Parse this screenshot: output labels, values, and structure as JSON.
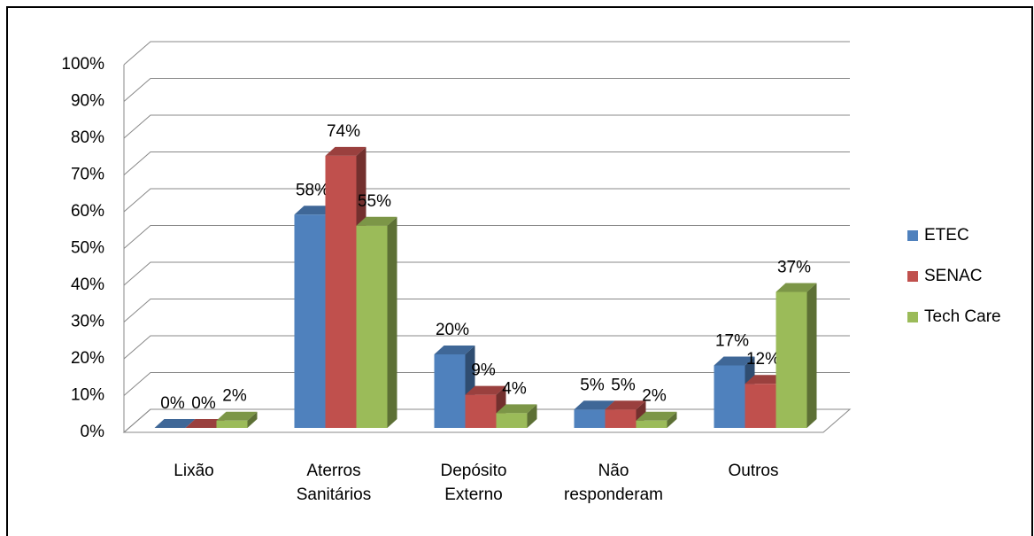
{
  "chart_data": {
    "type": "bar3d",
    "categories": [
      "Lixão",
      "Aterros Sanitários",
      "Depósito Externo",
      "Não responderam",
      "Outros"
    ],
    "series": [
      {
        "name": "ETEC",
        "color": "#4f81bd",
        "values": [
          0,
          58,
          20,
          5,
          17
        ],
        "value_labels": [
          "0%",
          "58%",
          "20%",
          "5%",
          "17%"
        ]
      },
      {
        "name": "SENAC",
        "color": "#c0504d",
        "values": [
          0,
          74,
          9,
          5,
          12
        ],
        "value_labels": [
          "0%",
          "74%",
          "9%",
          "5%",
          "12%"
        ]
      },
      {
        "name": "Tech Care",
        "color": "#9bbb59",
        "values": [
          2,
          55,
          4,
          2,
          37
        ],
        "value_labels": [
          "2%",
          "55%",
          "4%",
          "2%",
          "37%"
        ]
      }
    ],
    "ylim": [
      0,
      100
    ],
    "yticks": [
      {
        "value": 0,
        "label": "0%"
      },
      {
        "value": 10,
        "label": "10%"
      },
      {
        "value": 20,
        "label": "20%"
      },
      {
        "value": 30,
        "label": "30%"
      },
      {
        "value": 40,
        "label": "40%"
      },
      {
        "value": 50,
        "label": "50%"
      },
      {
        "value": 60,
        "label": "60%"
      },
      {
        "value": 70,
        "label": "70%"
      },
      {
        "value": 80,
        "label": "80%"
      },
      {
        "value": 90,
        "label": "90%"
      },
      {
        "value": 100,
        "label": "100%"
      }
    ],
    "grid": true,
    "legend": "right"
  }
}
